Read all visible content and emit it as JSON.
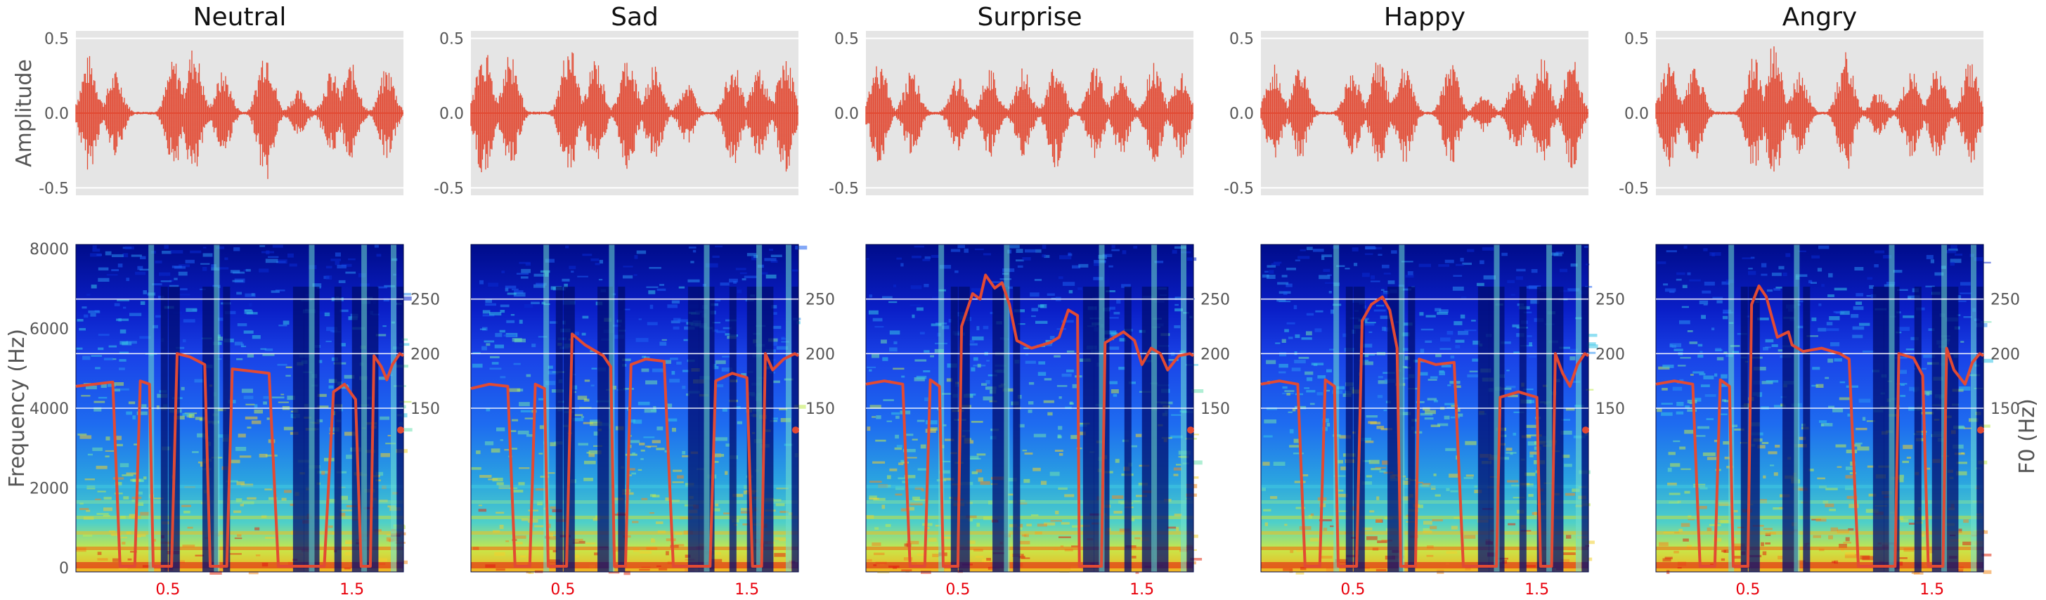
{
  "chart_data": [
    {
      "type": "line",
      "panel": "waveform",
      "title": "Neutral",
      "ylabel": "Amplitude",
      "ylim": [
        -0.55,
        0.55
      ],
      "yticks": [
        "0.5",
        "0.0",
        "-0.5"
      ],
      "color": "#e24a33",
      "background": "#e5e5e5"
    },
    {
      "type": "line",
      "panel": "waveform",
      "title": "Sad",
      "ylabel": "",
      "ylim": [
        -0.55,
        0.55
      ],
      "yticks": [
        "0.5",
        "0.0",
        "-0.5"
      ],
      "color": "#e24a33",
      "background": "#e5e5e5"
    },
    {
      "type": "line",
      "panel": "waveform",
      "title": "Surprise",
      "ylabel": "",
      "ylim": [
        -0.55,
        0.55
      ],
      "yticks": [
        "0.5",
        "0.0",
        "-0.5"
      ],
      "color": "#e24a33",
      "background": "#e5e5e5"
    },
    {
      "type": "line",
      "panel": "waveform",
      "title": "Happy",
      "ylabel": "",
      "ylim": [
        -0.55,
        0.55
      ],
      "yticks": [
        "0.5",
        "0.0",
        "-0.5"
      ],
      "color": "#e24a33",
      "background": "#e5e5e5"
    },
    {
      "type": "line",
      "panel": "waveform",
      "title": "Angry",
      "ylabel": "",
      "ylim": [
        -0.55,
        0.55
      ],
      "yticks": [
        "0.5",
        "0.0",
        "-0.5"
      ],
      "color": "#e24a33",
      "background": "#e5e5e5"
    },
    {
      "type": "heatmap",
      "panel": "spectrogram",
      "ylabel": "Frequency (Hz)",
      "ylim": [
        0,
        8000
      ],
      "yticks": [
        "8000",
        "6000",
        "4000",
        "2000",
        "0"
      ],
      "y2label": "",
      "y2ticks": [
        "250",
        "200",
        "150"
      ],
      "xticks": [
        "0.5",
        "1.5"
      ],
      "f0_color": "#e24a33",
      "f0": [
        [
          0.0,
          170
        ],
        [
          0.1,
          172
        ],
        [
          0.2,
          174
        ],
        [
          0.24,
          0
        ],
        [
          0.32,
          0
        ],
        [
          0.35,
          175
        ],
        [
          0.4,
          172
        ],
        [
          0.42,
          0
        ],
        [
          0.52,
          0
        ],
        [
          0.55,
          200
        ],
        [
          0.62,
          197
        ],
        [
          0.7,
          190
        ],
        [
          0.73,
          0
        ],
        [
          0.82,
          0
        ],
        [
          0.85,
          186
        ],
        [
          0.95,
          184
        ],
        [
          1.05,
          182
        ],
        [
          1.1,
          0
        ],
        [
          1.35,
          0
        ],
        [
          1.4,
          165
        ],
        [
          1.46,
          172
        ],
        [
          1.52,
          158
        ],
        [
          1.55,
          0
        ],
        [
          1.6,
          0
        ],
        [
          1.62,
          198
        ],
        [
          1.66,
          188
        ],
        [
          1.69,
          176
        ],
        [
          1.72,
          190
        ],
        [
          1.76,
          200
        ],
        [
          1.78,
          198
        ]
      ]
    },
    {
      "type": "heatmap",
      "panel": "spectrogram",
      "ylabel": "",
      "ylim": [
        0,
        8000
      ],
      "y2label": "",
      "y2ticks": [
        "250",
        "200",
        "150"
      ],
      "xticks": [
        "0.5",
        "1.5"
      ],
      "f0_color": "#e24a33",
      "f0": [
        [
          0.0,
          168
        ],
        [
          0.1,
          172
        ],
        [
          0.2,
          170
        ],
        [
          0.24,
          0
        ],
        [
          0.32,
          0
        ],
        [
          0.35,
          172
        ],
        [
          0.4,
          168
        ],
        [
          0.42,
          0
        ],
        [
          0.52,
          0
        ],
        [
          0.55,
          218
        ],
        [
          0.62,
          208
        ],
        [
          0.72,
          198
        ],
        [
          0.76,
          188
        ],
        [
          0.78,
          0
        ],
        [
          0.84,
          0
        ],
        [
          0.87,
          190
        ],
        [
          0.95,
          195
        ],
        [
          1.05,
          193
        ],
        [
          1.1,
          0
        ],
        [
          1.3,
          0
        ],
        [
          1.33,
          175
        ],
        [
          1.42,
          182
        ],
        [
          1.5,
          178
        ],
        [
          1.53,
          0
        ],
        [
          1.58,
          0
        ],
        [
          1.6,
          200
        ],
        [
          1.64,
          185
        ],
        [
          1.7,
          195
        ],
        [
          1.76,
          200
        ],
        [
          1.78,
          198
        ]
      ]
    },
    {
      "type": "heatmap",
      "panel": "spectrogram",
      "ylabel": "",
      "ylim": [
        0,
        8000
      ],
      "y2label": "",
      "y2ticks": [
        "250",
        "200",
        "150"
      ],
      "xticks": [
        "0.5",
        "1.5"
      ],
      "f0_color": "#e24a33",
      "f0": [
        [
          0.0,
          172
        ],
        [
          0.1,
          175
        ],
        [
          0.2,
          172
        ],
        [
          0.24,
          0
        ],
        [
          0.32,
          0
        ],
        [
          0.35,
          176
        ],
        [
          0.4,
          170
        ],
        [
          0.42,
          0
        ],
        [
          0.5,
          0
        ],
        [
          0.52,
          225
        ],
        [
          0.58,
          255
        ],
        [
          0.62,
          250
        ],
        [
          0.65,
          272
        ],
        [
          0.7,
          260
        ],
        [
          0.74,
          265
        ],
        [
          0.78,
          245
        ],
        [
          0.82,
          212
        ],
        [
          0.9,
          205
        ],
        [
          1.0,
          210
        ],
        [
          1.05,
          215
        ],
        [
          1.1,
          240
        ],
        [
          1.15,
          235
        ],
        [
          1.16,
          0
        ],
        [
          1.28,
          0
        ],
        [
          1.3,
          210
        ],
        [
          1.4,
          220
        ],
        [
          1.46,
          212
        ],
        [
          1.5,
          190
        ],
        [
          1.55,
          205
        ],
        [
          1.6,
          200
        ],
        [
          1.64,
          185
        ],
        [
          1.7,
          198
        ],
        [
          1.76,
          200
        ],
        [
          1.78,
          198
        ]
      ]
    },
    {
      "type": "heatmap",
      "panel": "spectrogram",
      "ylabel": "",
      "ylim": [
        0,
        8000
      ],
      "y2label": "",
      "y2ticks": [
        "250",
        "200",
        "150"
      ],
      "xticks": [
        "0.5",
        "1.5"
      ],
      "f0_color": "#e24a33",
      "f0": [
        [
          0.0,
          172
        ],
        [
          0.1,
          175
        ],
        [
          0.2,
          172
        ],
        [
          0.24,
          0
        ],
        [
          0.32,
          0
        ],
        [
          0.35,
          176
        ],
        [
          0.4,
          170
        ],
        [
          0.42,
          0
        ],
        [
          0.52,
          0
        ],
        [
          0.55,
          230
        ],
        [
          0.6,
          245
        ],
        [
          0.66,
          252
        ],
        [
          0.7,
          240
        ],
        [
          0.74,
          205
        ],
        [
          0.76,
          0
        ],
        [
          0.84,
          0
        ],
        [
          0.86,
          195
        ],
        [
          0.95,
          190
        ],
        [
          1.05,
          192
        ],
        [
          1.1,
          0
        ],
        [
          1.28,
          0
        ],
        [
          1.3,
          160
        ],
        [
          1.4,
          165
        ],
        [
          1.5,
          160
        ],
        [
          1.52,
          0
        ],
        [
          1.58,
          0
        ],
        [
          1.6,
          200
        ],
        [
          1.64,
          182
        ],
        [
          1.68,
          170
        ],
        [
          1.72,
          190
        ],
        [
          1.76,
          200
        ],
        [
          1.78,
          198
        ]
      ]
    },
    {
      "type": "heatmap",
      "panel": "spectrogram",
      "ylabel": "",
      "ylim": [
        0,
        8000
      ],
      "y2label": "F0 (Hz)",
      "y2ticks": [
        "250",
        "200",
        "150"
      ],
      "xticks": [
        "0.5",
        "1.5"
      ],
      "f0_color": "#e24a33",
      "f0": [
        [
          0.0,
          172
        ],
        [
          0.1,
          175
        ],
        [
          0.2,
          172
        ],
        [
          0.24,
          0
        ],
        [
          0.32,
          0
        ],
        [
          0.35,
          176
        ],
        [
          0.4,
          170
        ],
        [
          0.42,
          0
        ],
        [
          0.5,
          0
        ],
        [
          0.52,
          245
        ],
        [
          0.56,
          262
        ],
        [
          0.6,
          252
        ],
        [
          0.66,
          215
        ],
        [
          0.72,
          220
        ],
        [
          0.74,
          208
        ],
        [
          0.8,
          202
        ],
        [
          0.9,
          205
        ],
        [
          1.0,
          200
        ],
        [
          1.05,
          195
        ],
        [
          1.1,
          0
        ],
        [
          1.3,
          0
        ],
        [
          1.32,
          200
        ],
        [
          1.4,
          196
        ],
        [
          1.45,
          180
        ],
        [
          1.48,
          0
        ],
        [
          1.56,
          0
        ],
        [
          1.58,
          205
        ],
        [
          1.62,
          185
        ],
        [
          1.68,
          172
        ],
        [
          1.72,
          192
        ],
        [
          1.76,
          200
        ],
        [
          1.78,
          198
        ]
      ]
    }
  ]
}
